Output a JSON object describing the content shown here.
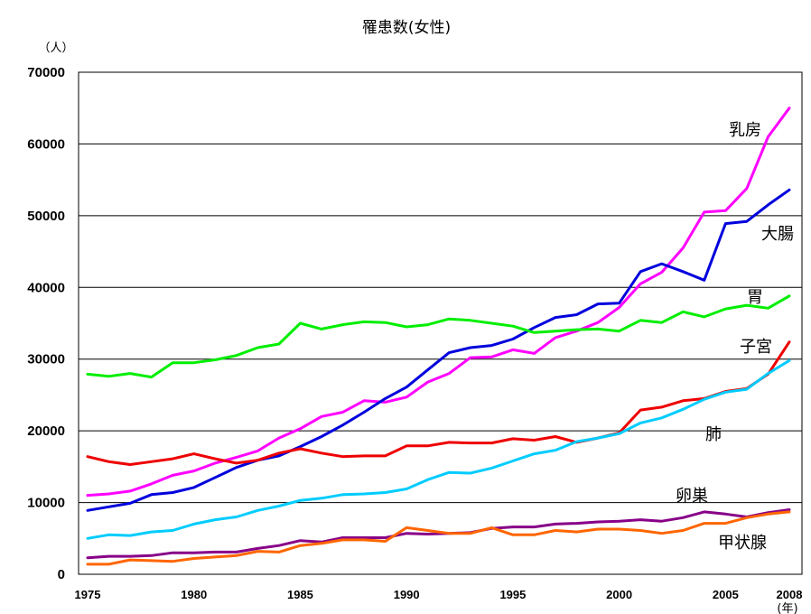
{
  "chart_data": {
    "type": "line",
    "title": "罹患数(女性)",
    "y_unit": "（人）",
    "x_unit": "(年)",
    "ylim": [
      0,
      70000
    ],
    "yticks": [
      0,
      10000,
      20000,
      30000,
      40000,
      50000,
      60000,
      70000
    ],
    "xlim": [
      1975,
      2008
    ],
    "xticks": [
      1975,
      1980,
      1985,
      1990,
      1995,
      2000,
      2005,
      2008
    ],
    "grid": true,
    "x": [
      1975,
      1976,
      1977,
      1978,
      1979,
      1980,
      1981,
      1982,
      1983,
      1984,
      1985,
      1986,
      1987,
      1988,
      1989,
      1990,
      1991,
      1992,
      1993,
      1994,
      1995,
      1996,
      1997,
      1998,
      1999,
      2000,
      2001,
      2002,
      2003,
      2004,
      2005,
      2006,
      2007,
      2008
    ],
    "series": [
      {
        "name": "乳房",
        "color": "#ff00ff",
        "values": [
          11000,
          11200,
          11600,
          12600,
          13800,
          14400,
          15500,
          16300,
          17200,
          19000,
          20300,
          22000,
          22600,
          24200,
          24000,
          24700,
          26800,
          28000,
          30200,
          30300,
          31300,
          30800,
          33000,
          33900,
          35100,
          37200,
          40500,
          42100,
          45500,
          50500,
          50700,
          53800,
          61000,
          65000
        ]
      },
      {
        "name": "大腸",
        "color": "#0000dd",
        "values": [
          8900,
          9400,
          9900,
          11100,
          11400,
          12100,
          13500,
          14900,
          15900,
          16500,
          17800,
          19200,
          20800,
          22600,
          24500,
          26100,
          28500,
          30900,
          31600,
          31900,
          32800,
          34400,
          35800,
          36200,
          37700,
          37800,
          42200,
          43300,
          42200,
          41000,
          48900,
          49200,
          51500,
          53600
        ]
      },
      {
        "name": "胃",
        "color": "#00ee00",
        "values": [
          27900,
          27600,
          28000,
          27500,
          29500,
          29500,
          29900,
          30500,
          31600,
          32100,
          35000,
          34200,
          34800,
          35200,
          35100,
          34500,
          34800,
          35600,
          35400,
          35000,
          34600,
          33700,
          33900,
          34100,
          34200,
          33900,
          35400,
          35100,
          36600,
          35900,
          37000,
          37500,
          37100,
          38800
        ]
      },
      {
        "name": "子宮",
        "color": "#ee0000",
        "values": [
          16400,
          15700,
          15300,
          15700,
          16100,
          16800,
          16100,
          15500,
          15900,
          16900,
          17500,
          16900,
          16400,
          16500,
          16500,
          17900,
          17900,
          18400,
          18300,
          18300,
          18900,
          18700,
          19200,
          18400,
          19000,
          19700,
          22900,
          23300,
          24200,
          24500,
          25500,
          25900,
          27900,
          32400
        ]
      },
      {
        "name": "肺",
        "color": "#00ccff",
        "values": [
          5000,
          5500,
          5400,
          5900,
          6100,
          7000,
          7600,
          8000,
          8900,
          9500,
          10300,
          10600,
          11100,
          11200,
          11400,
          11900,
          13200,
          14200,
          14100,
          14800,
          15800,
          16800,
          17300,
          18500,
          19000,
          19600,
          21100,
          21800,
          23000,
          24400,
          25400,
          25800,
          28000,
          29800
        ]
      },
      {
        "name": "卵巣",
        "color": "#880088",
        "values": [
          2300,
          2500,
          2500,
          2600,
          3000,
          3000,
          3100,
          3100,
          3600,
          4000,
          4700,
          4500,
          5100,
          5100,
          5100,
          5700,
          5600,
          5700,
          5800,
          6400,
          6600,
          6600,
          7000,
          7100,
          7300,
          7400,
          7600,
          7400,
          7900,
          8700,
          8400,
          8000,
          8600,
          9000
        ]
      },
      {
        "name": "甲状腺",
        "color": "#ff6600",
        "values": [
          1400,
          1400,
          2000,
          1900,
          1800,
          2200,
          2400,
          2600,
          3200,
          3100,
          4000,
          4300,
          4800,
          4800,
          4600,
          6500,
          6100,
          5700,
          5700,
          6500,
          5500,
          5500,
          6100,
          5900,
          6300,
          6300,
          6100,
          5700,
          6100,
          7100,
          7100,
          7900,
          8400,
          8700
        ]
      }
    ]
  }
}
